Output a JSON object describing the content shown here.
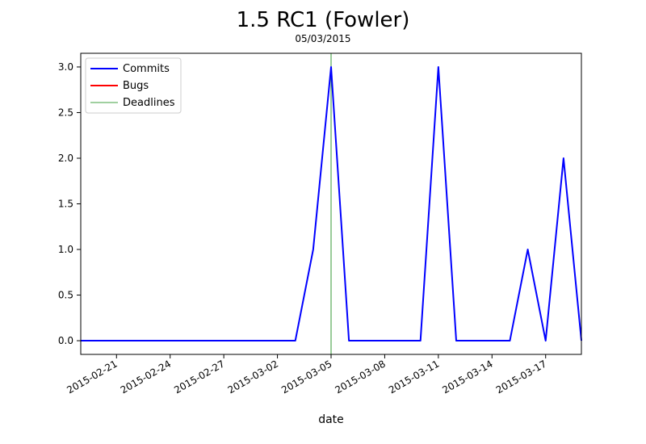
{
  "chart_data": {
    "type": "line",
    "title": "1.5 RC1 (Fowler)",
    "subtitle": "05/03/2015",
    "xlabel": "date",
    "ylabel": "",
    "x_start": "2015-02-19",
    "x_end": "2015-03-19",
    "ylim": [
      -0.15,
      3.15
    ],
    "yticks": [
      "0.0",
      "0.5",
      "1.0",
      "1.5",
      "2.0",
      "2.5",
      "3.0"
    ],
    "ytick_values": [
      0,
      0.5,
      1.0,
      1.5,
      2.0,
      2.5,
      3.0
    ],
    "xticks": [
      "2015-02-21",
      "2015-02-24",
      "2015-02-27",
      "2015-03-02",
      "2015-03-05",
      "2015-03-08",
      "2015-03-11",
      "2015-03-14",
      "2015-03-17"
    ],
    "grid": false,
    "legend_position": "top-left",
    "legend": [
      {
        "name": "Commits",
        "color": "#0000ff"
      },
      {
        "name": "Bugs",
        "color": "#ff0000"
      },
      {
        "name": "Deadlines",
        "color": "#008000"
      }
    ],
    "series": [
      {
        "name": "Commits",
        "color": "#0000ff",
        "x": [
          "2015-02-19",
          "2015-02-20",
          "2015-02-21",
          "2015-02-22",
          "2015-02-23",
          "2015-02-24",
          "2015-02-25",
          "2015-02-26",
          "2015-02-27",
          "2015-02-28",
          "2015-03-01",
          "2015-03-02",
          "2015-03-03",
          "2015-03-04",
          "2015-03-05",
          "2015-03-06",
          "2015-03-07",
          "2015-03-08",
          "2015-03-09",
          "2015-03-10",
          "2015-03-11",
          "2015-03-12",
          "2015-03-13",
          "2015-03-14",
          "2015-03-15",
          "2015-03-16",
          "2015-03-17",
          "2015-03-18",
          "2015-03-19"
        ],
        "values": [
          0,
          0,
          0,
          0,
          0,
          0,
          0,
          0,
          0,
          0,
          0,
          0,
          0,
          1,
          3,
          0,
          0,
          0,
          0,
          0,
          3,
          0,
          0,
          0,
          0,
          1,
          0,
          2,
          0
        ]
      },
      {
        "name": "Bugs",
        "color": "#ff0000",
        "x": [],
        "values": []
      }
    ],
    "deadlines": [
      {
        "name": "Deadlines",
        "x": "2015-03-05",
        "color": "#008000"
      }
    ]
  }
}
